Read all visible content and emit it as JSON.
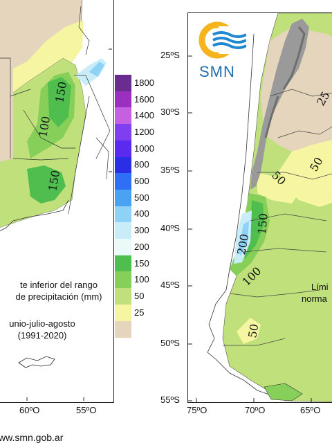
{
  "left_map": {
    "lat_labels": [],
    "lon_labels": [
      {
        "text": "60ºO"
      },
      {
        "text": "55ºO"
      }
    ],
    "contour_labels": [
      "150",
      "100",
      "150"
    ],
    "note_lines": [
      "te inferior del rango",
      "de precipitación (mm)"
    ],
    "period_lines": [
      "unio-julio-agosto",
      "(1991-2020)"
    ],
    "footer_url": "ww.smn.gob.ar"
  },
  "legend": {
    "title": "",
    "items": [
      {
        "label": "1800",
        "color": "#6a2c8e"
      },
      {
        "label": "1600",
        "color": "#9b2fc0"
      },
      {
        "label": "1400",
        "color": "#c560e0"
      },
      {
        "label": "1200",
        "color": "#7f3ff0"
      },
      {
        "label": "1000",
        "color": "#5a2af0"
      },
      {
        "label": "800",
        "color": "#2a2fe6"
      },
      {
        "label": "600",
        "color": "#2e6ff5"
      },
      {
        "label": "500",
        "color": "#4aa3f2"
      },
      {
        "label": "400",
        "color": "#8ed2f5"
      },
      {
        "label": "300",
        "color": "#c9edf8"
      },
      {
        "label": "200",
        "color": "#eafaf8"
      },
      {
        "label": "150",
        "color": "#4fbe4f"
      },
      {
        "label": "100",
        "color": "#86d05a"
      },
      {
        "label": "50",
        "color": "#bfe07a"
      },
      {
        "label": "25",
        "color": "#f6f5a2"
      },
      {
        "label": "",
        "color": "#e6d5bd"
      }
    ]
  },
  "right_map": {
    "logo_text": "SMN",
    "lat_labels": [
      "25ºS",
      "30ºS",
      "35ºS",
      "40ºS",
      "45ºS",
      "50ºS",
      "55ºS"
    ],
    "lon_labels": [
      "75ºO",
      "70ºO",
      "65ºO"
    ],
    "contour_labels": [
      "25",
      "50",
      "50",
      "150",
      "200",
      "100",
      "50"
    ],
    "note_lines": [
      "Lími",
      "norma"
    ]
  },
  "colors": {
    "desert": "#e6d5bd",
    "lv25": "#f6f5a2",
    "lv50": "#bfe07a",
    "lv100": "#86d05a",
    "lv150": "#4fbe4f",
    "lv200": "#eafaf8",
    "lv300": "#c9edf8",
    "lv400": "#8ed2f5",
    "andes": "#9a9a9a"
  }
}
